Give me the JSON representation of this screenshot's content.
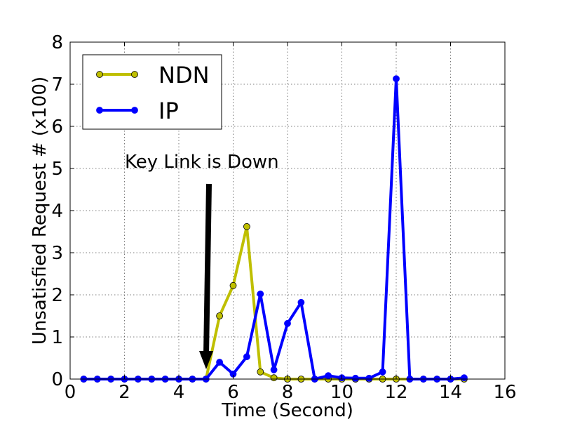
{
  "chart_data": {
    "type": "line",
    "title": "",
    "xlabel": "Time (Second)",
    "ylabel": "Unsatisfied Request # (x100)",
    "xlim": [
      0,
      16
    ],
    "ylim": [
      0,
      8
    ],
    "xticks": [
      "0",
      "2",
      "4",
      "6",
      "8",
      "10",
      "12",
      "14",
      "16"
    ],
    "yticks": [
      "0",
      "1",
      "2",
      "3",
      "4",
      "5",
      "6",
      "7",
      "8"
    ],
    "grid": true,
    "legend_position": "top-left",
    "annotation": {
      "text": "Key Link is Down",
      "x": 5,
      "y": 0.25
    },
    "series": [
      {
        "name": "NDN",
        "color": "#bfbf00",
        "x": [
          0.5,
          1,
          1.5,
          2,
          2.5,
          3,
          3.5,
          4,
          4.5,
          5,
          5.5,
          6,
          6.5,
          7,
          7.5,
          8,
          8.5,
          9,
          9.5,
          10,
          10.5,
          11,
          11.5,
          12,
          12.5,
          13,
          13.5,
          14,
          14.5
        ],
        "y": [
          0,
          0,
          0,
          0,
          0,
          0,
          0,
          0,
          0,
          0,
          1.5,
          2.22,
          3.62,
          0.17,
          0.03,
          0,
          0,
          0,
          0,
          0,
          0,
          0,
          0,
          0,
          0,
          0,
          0,
          0,
          0
        ]
      },
      {
        "name": "IP",
        "color": "#0000ff",
        "x": [
          0.5,
          1,
          1.5,
          2,
          2.5,
          3,
          3.5,
          4,
          4.5,
          5,
          5.5,
          6,
          6.5,
          7,
          7.5,
          8,
          8.5,
          9,
          9.5,
          10,
          10.5,
          11,
          11.5,
          12,
          12.5,
          13,
          13.5,
          14,
          14.5
        ],
        "y": [
          0,
          0,
          0,
          0,
          0,
          0,
          0,
          0,
          0,
          0,
          0.4,
          0.12,
          0.53,
          2.02,
          0.22,
          1.32,
          1.82,
          0,
          0.08,
          0.03,
          0.02,
          0.02,
          0.17,
          7.13,
          0,
          0,
          0,
          0,
          0.03
        ]
      }
    ]
  }
}
